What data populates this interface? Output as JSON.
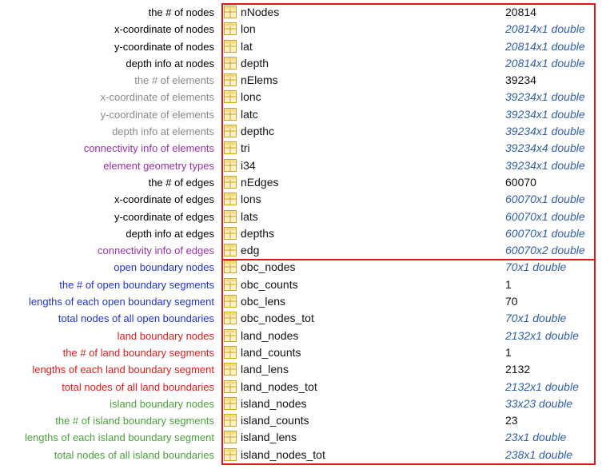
{
  "labels": [
    {
      "text": "the # of nodes",
      "color": "#000000"
    },
    {
      "text": "x-coordinate of nodes",
      "color": "#000000"
    },
    {
      "text": "y-coordinate of nodes",
      "color": "#000000"
    },
    {
      "text": "depth info at nodes",
      "color": "#000000"
    },
    {
      "text": "the # of elements",
      "color": "#8a8a8a"
    },
    {
      "text": "x-coordinate of elements",
      "color": "#8a8a8a"
    },
    {
      "text": "y-coordinate of elements",
      "color": "#8a8a8a"
    },
    {
      "text": "depth info at elements",
      "color": "#8a8a8a"
    },
    {
      "text": "connectivity info of elements",
      "color": "#9b2fae"
    },
    {
      "text": "element geometry types",
      "color": "#9b2fae"
    },
    {
      "text": "the # of edges",
      "color": "#000000"
    },
    {
      "text": "x-coordinate of edges",
      "color": "#000000"
    },
    {
      "text": "y-coordinate of edges",
      "color": "#000000"
    },
    {
      "text": "depth info at edges",
      "color": "#000000"
    },
    {
      "text": "connectivity info of edges",
      "color": "#9b2fae"
    },
    {
      "text": "open boundary nodes",
      "color": "#1f33d6"
    },
    {
      "text": "the # of open boundary segments",
      "color": "#1f33d6"
    },
    {
      "text": "lengths of each open boundary segment",
      "color": "#1f33d6"
    },
    {
      "text": "total nodes of all open boundaries",
      "color": "#1f33d6"
    },
    {
      "text": "land boundary nodes",
      "color": "#e11b1b"
    },
    {
      "text": "the # of land boundary segments",
      "color": "#e11b1b"
    },
    {
      "text": "lengths of each land boundary segment",
      "color": "#e11b1b"
    },
    {
      "text": "total nodes of all land boundaries",
      "color": "#e11b1b"
    },
    {
      "text": "island boundary nodes",
      "color": "#4aa23a"
    },
    {
      "text": "the # of island boundary segments",
      "color": "#4aa23a"
    },
    {
      "text": "lengths of each island boundary segment",
      "color": "#4aa23a"
    },
    {
      "text": "total nodes of all island boundaries",
      "color": "#4aa23a"
    }
  ],
  "variables": [
    {
      "name": "nNodes",
      "value": "20814",
      "italic": false
    },
    {
      "name": "lon",
      "value": "20814x1 double",
      "italic": true
    },
    {
      "name": "lat",
      "value": "20814x1 double",
      "italic": true
    },
    {
      "name": "depth",
      "value": "20814x1 double",
      "italic": true
    },
    {
      "name": "nElems",
      "value": "39234",
      "italic": false
    },
    {
      "name": "lonc",
      "value": "39234x1 double",
      "italic": true
    },
    {
      "name": "latc",
      "value": "39234x1 double",
      "italic": true
    },
    {
      "name": "depthc",
      "value": "39234x1 double",
      "italic": true
    },
    {
      "name": "tri",
      "value": "39234x4 double",
      "italic": true
    },
    {
      "name": "i34",
      "value": "39234x1 double",
      "italic": true
    },
    {
      "name": "nEdges",
      "value": "60070",
      "italic": false
    },
    {
      "name": "lons",
      "value": "60070x1 double",
      "italic": true
    },
    {
      "name": "lats",
      "value": "60070x1 double",
      "italic": true
    },
    {
      "name": "depths",
      "value": "60070x1 double",
      "italic": true
    },
    {
      "name": "edg",
      "value": "60070x2 double",
      "italic": true
    },
    {
      "name": "obc_nodes",
      "value": "70x1 double",
      "italic": true
    },
    {
      "name": "obc_counts",
      "value": "1",
      "italic": false
    },
    {
      "name": "obc_lens",
      "value": "70",
      "italic": false
    },
    {
      "name": "obc_nodes_tot",
      "value": "70x1 double",
      "italic": true
    },
    {
      "name": "land_nodes",
      "value": "2132x1 double",
      "italic": true
    },
    {
      "name": "land_counts",
      "value": "1",
      "italic": false
    },
    {
      "name": "land_lens",
      "value": "2132",
      "italic": false
    },
    {
      "name": "land_nodes_tot",
      "value": "2132x1 double",
      "italic": true
    },
    {
      "name": "island_nodes",
      "value": "33x23 double",
      "italic": true
    },
    {
      "name": "island_counts",
      "value": "23",
      "italic": false
    },
    {
      "name": "island_lens",
      "value": "23x1 double",
      "italic": true
    },
    {
      "name": "island_nodes_tot",
      "value": "238x1 double",
      "italic": true
    }
  ],
  "icon": "matrix-grid-icon",
  "accent": "#e0161d"
}
